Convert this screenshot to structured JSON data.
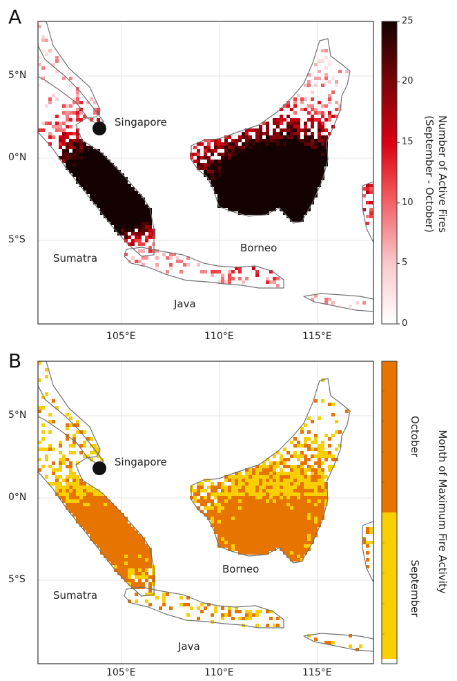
{
  "panels": [
    {
      "letter": "A",
      "lat_ticks": [
        "5°N",
        "0°N",
        "5°S"
      ],
      "lon_ticks": [
        "105°E",
        "110°E",
        "115°E"
      ],
      "places": [
        "Singapore",
        "Sumatra",
        "Borneo",
        "Java"
      ],
      "colorbar": {
        "title": [
          "Number of Active Fires",
          "(September - October)"
        ],
        "ticks": [
          "25",
          "20",
          "15",
          "10",
          "5",
          "0"
        ],
        "colors": [
          "#ffffff",
          "#f9c9cc",
          "#f04a4f",
          "#d90012",
          "#7a0508",
          "#140202"
        ]
      }
    },
    {
      "letter": "B",
      "lat_ticks": [
        "5°N",
        "0°N",
        "5°S"
      ],
      "lon_ticks": [
        "105°E",
        "110°E",
        "115°E"
      ],
      "places": [
        "Singapore",
        "Sumatra",
        "Borneo",
        "Java"
      ],
      "colorbar": {
        "title": [
          "Month of Maximum Fire Activity"
        ],
        "categories": [
          "October",
          "September"
        ],
        "colors": [
          "#e87400",
          "#f8cf00"
        ]
      }
    }
  ],
  "marker": {
    "name": "Singapore",
    "color": "#111111"
  }
}
